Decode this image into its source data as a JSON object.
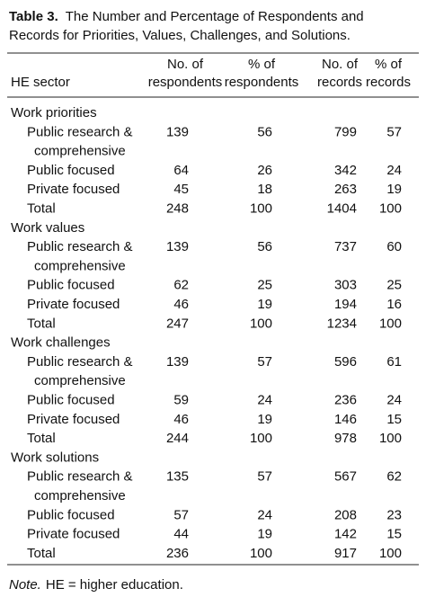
{
  "header": {
    "label": "Table 3.",
    "lines": [
      "The Number and Percentage of Respondents and",
      "Records for Priorities, Values, Challenges, and Solutions."
    ]
  },
  "table": {
    "columns": [
      [
        "HE sector"
      ],
      [
        "No. of",
        "respondents"
      ],
      [
        "% of",
        "respondents"
      ],
      [
        "No. of",
        "records"
      ],
      [
        "% of",
        "records"
      ]
    ],
    "sections": [
      {
        "name": "Work priorities",
        "rows": [
          {
            "label": [
              "Public research &",
              "comprehensive"
            ],
            "values": [
              "139",
              "56",
              "799",
              "57"
            ]
          },
          {
            "label": [
              "Public focused"
            ],
            "values": [
              "64",
              "26",
              "342",
              "24"
            ]
          },
          {
            "label": [
              "Private focused"
            ],
            "values": [
              "45",
              "18",
              "263",
              "19"
            ]
          },
          {
            "label": [
              "Total"
            ],
            "values": [
              "248",
              "100",
              "1404",
              "100"
            ]
          }
        ]
      },
      {
        "name": "Work values",
        "rows": [
          {
            "label": [
              "Public research &",
              "comprehensive"
            ],
            "values": [
              "139",
              "56",
              "737",
              "60"
            ]
          },
          {
            "label": [
              "Public focused"
            ],
            "values": [
              "62",
              "25",
              "303",
              "25"
            ]
          },
          {
            "label": [
              "Private focused"
            ],
            "values": [
              "46",
              "19",
              "194",
              "16"
            ]
          },
          {
            "label": [
              "Total"
            ],
            "values": [
              "247",
              "100",
              "1234",
              "100"
            ]
          }
        ]
      },
      {
        "name": "Work challenges",
        "rows": [
          {
            "label": [
              "Public research &",
              "comprehensive"
            ],
            "values": [
              "139",
              "57",
              "596",
              "61"
            ]
          },
          {
            "label": [
              "Public focused"
            ],
            "values": [
              "59",
              "24",
              "236",
              "24"
            ]
          },
          {
            "label": [
              "Private focused"
            ],
            "values": [
              "46",
              "19",
              "146",
              "15"
            ]
          },
          {
            "label": [
              "Total"
            ],
            "values": [
              "244",
              "100",
              "978",
              "100"
            ]
          }
        ]
      },
      {
        "name": "Work solutions",
        "rows": [
          {
            "label": [
              "Public research &",
              "comprehensive"
            ],
            "values": [
              "135",
              "57",
              "567",
              "62"
            ]
          },
          {
            "label": [
              "Public focused"
            ],
            "values": [
              "57",
              "24",
              "208",
              "23"
            ]
          },
          {
            "label": [
              "Private focused"
            ],
            "values": [
              "44",
              "19",
              "142",
              "15"
            ]
          },
          {
            "label": [
              "Total"
            ],
            "values": [
              "236",
              "100",
              "917",
              "100"
            ]
          }
        ]
      }
    ]
  },
  "note": {
    "label": "Note.",
    "text": "HE = higher education."
  }
}
